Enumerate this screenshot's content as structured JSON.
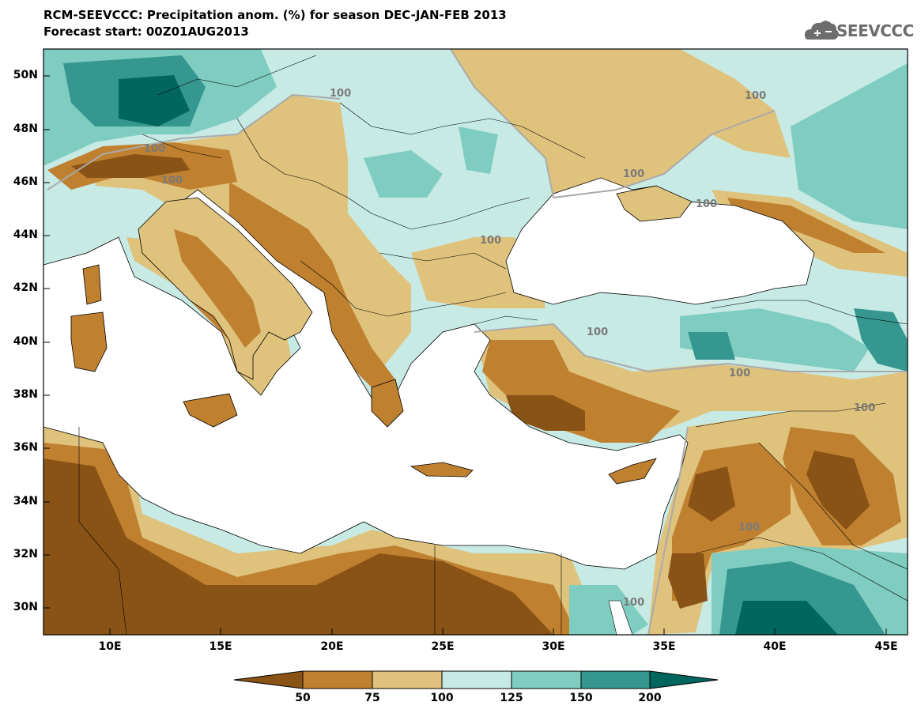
{
  "header": {
    "title_line1": "RCM-SEEVCCC: Precipitation anom. (%) for season DEC-JAN-FEB 2013",
    "title_line2": "Forecast start: 00Z01AUG2013",
    "logo_text": "SEEVCCC"
  },
  "map": {
    "lon_range": [
      7,
      46
    ],
    "lat_range": [
      29,
      51
    ],
    "lat_labels": [
      "50N",
      "48N",
      "46N",
      "44N",
      "42N",
      "40N",
      "38N",
      "36N",
      "34N",
      "32N",
      "30N"
    ],
    "lon_labels": [
      "10E",
      "15E",
      "20E",
      "25E",
      "30E",
      "35E",
      "40E",
      "45E"
    ],
    "contour_labels": [
      "100",
      "100",
      "100",
      "100",
      "100",
      "100",
      "100",
      "100",
      "100",
      "100",
      "100",
      "100"
    ]
  },
  "colorbar": {
    "labels": [
      "50",
      "75",
      "100",
      "125",
      "150",
      "200"
    ],
    "colors": [
      "#8a5316",
      "#bf8030",
      "#dfc27c",
      "#c7eae5",
      "#7fcdc0",
      "#35978f",
      "#01665e"
    ]
  },
  "colors": {
    "very_dry": "#8a5316",
    "dry": "#bf8030",
    "slightly_dry": "#dfc27c",
    "slightly_wet": "#c7eae5",
    "wet": "#7fcdc0",
    "very_wet": "#35978f",
    "extreme_wet": "#01665e",
    "sea": "#ffffff"
  }
}
